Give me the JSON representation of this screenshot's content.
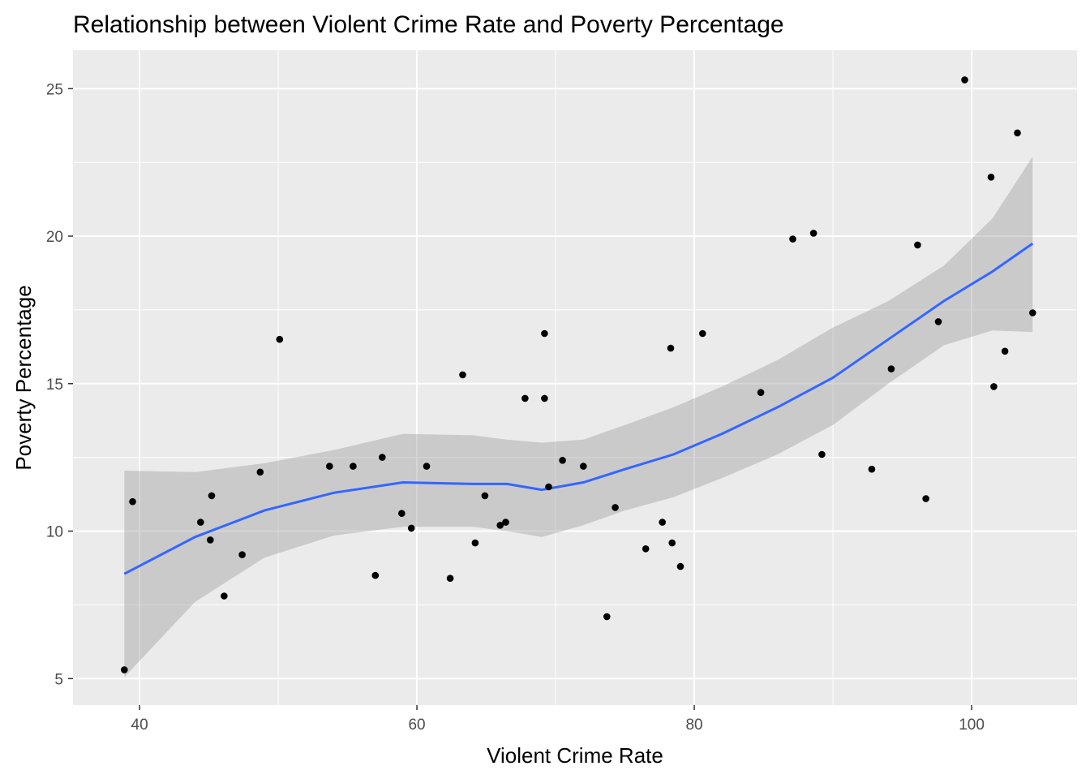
{
  "chart_data": {
    "type": "scatter",
    "title": "Relationship between Violent Crime Rate and Poverty Percentage",
    "xlabel": "Violent Crime Rate",
    "ylabel": "Poverty Percentage",
    "xlim": [
      35.2,
      107.6
    ],
    "ylim": [
      4.1,
      26.3
    ],
    "x_ticks": [
      40,
      60,
      80,
      100
    ],
    "y_ticks": [
      5,
      10,
      15,
      20,
      25
    ],
    "grid": true,
    "legend": "none",
    "colors": {
      "panel_background": "#ebebeb",
      "grid": "#ffffff",
      "points": "#000000",
      "smooth_line": "#3366ff",
      "confidence_band": "#cccccc"
    },
    "points": [
      [
        38.9,
        5.3
      ],
      [
        39.5,
        11.0
      ],
      [
        44.4,
        10.3
      ],
      [
        45.1,
        9.7
      ],
      [
        45.2,
        11.2
      ],
      [
        46.1,
        7.8
      ],
      [
        47.4,
        9.2
      ],
      [
        48.7,
        12.0
      ],
      [
        50.1,
        16.5
      ],
      [
        53.7,
        12.2
      ],
      [
        55.4,
        12.2
      ],
      [
        57.0,
        8.5
      ],
      [
        57.5,
        12.5
      ],
      [
        58.9,
        10.6
      ],
      [
        59.6,
        10.1
      ],
      [
        60.7,
        12.2
      ],
      [
        62.4,
        8.4
      ],
      [
        63.3,
        15.3
      ],
      [
        64.2,
        9.6
      ],
      [
        64.9,
        11.2
      ],
      [
        66.0,
        10.2
      ],
      [
        66.4,
        10.3
      ],
      [
        67.8,
        14.5
      ],
      [
        69.2,
        16.7
      ],
      [
        69.2,
        14.5
      ],
      [
        69.5,
        11.5
      ],
      [
        70.5,
        12.4
      ],
      [
        72.0,
        12.2
      ],
      [
        73.7,
        7.1
      ],
      [
        74.3,
        10.8
      ],
      [
        76.5,
        9.4
      ],
      [
        77.7,
        10.3
      ],
      [
        78.3,
        16.2
      ],
      [
        78.4,
        9.6
      ],
      [
        79.0,
        8.8
      ],
      [
        80.6,
        16.7
      ],
      [
        84.8,
        14.7
      ],
      [
        87.1,
        19.9
      ],
      [
        88.6,
        20.1
      ],
      [
        89.2,
        12.6
      ],
      [
        92.8,
        12.1
      ],
      [
        94.2,
        15.5
      ],
      [
        96.1,
        19.7
      ],
      [
        96.7,
        11.1
      ],
      [
        97.6,
        17.1
      ],
      [
        99.5,
        25.3
      ],
      [
        101.4,
        22.0
      ],
      [
        101.6,
        14.9
      ],
      [
        102.4,
        16.1
      ],
      [
        103.3,
        23.5
      ],
      [
        104.4,
        17.4
      ]
    ],
    "smooth": {
      "x": [
        38.9,
        44,
        49,
        54,
        59,
        64,
        66.5,
        69,
        72,
        75,
        78.5,
        82,
        86,
        90,
        94,
        98,
        101.5,
        104.4
      ],
      "y": [
        8.55,
        9.8,
        10.7,
        11.3,
        11.65,
        11.6,
        11.6,
        11.4,
        11.65,
        12.1,
        12.6,
        13.3,
        14.2,
        15.2,
        16.5,
        17.8,
        18.8,
        19.75
      ],
      "upper": [
        12.05,
        12.0,
        12.3,
        12.75,
        13.3,
        13.25,
        13.1,
        13.0,
        13.1,
        13.6,
        14.2,
        14.9,
        15.8,
        16.9,
        17.8,
        19.0,
        20.6,
        22.7
      ],
      "lower": [
        5.05,
        7.6,
        9.1,
        9.85,
        10.15,
        10.15,
        10.0,
        9.8,
        10.2,
        10.7,
        11.15,
        11.8,
        12.6,
        13.6,
        15.0,
        16.3,
        16.8,
        16.75
      ]
    }
  }
}
